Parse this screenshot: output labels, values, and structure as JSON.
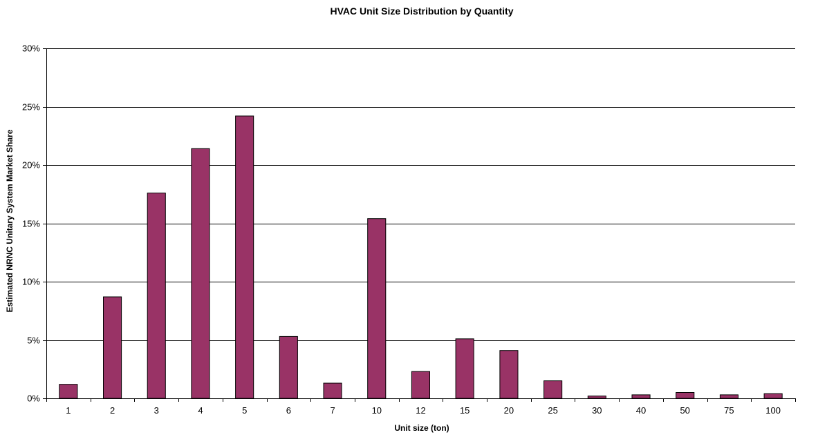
{
  "chart_data": {
    "type": "bar",
    "title": "HVAC Unit Size Distribution by Quantity",
    "xlabel": "Unit size (ton)",
    "ylabel": "Estimated NRNC Unitary System Market Share",
    "categories": [
      "1",
      "2",
      "3",
      "4",
      "5",
      "6",
      "7",
      "10",
      "12",
      "15",
      "20",
      "25",
      "30",
      "40",
      "50",
      "75",
      "100"
    ],
    "values": [
      1.2,
      8.7,
      17.6,
      21.4,
      24.2,
      5.3,
      1.3,
      15.4,
      2.3,
      5.1,
      4.1,
      1.5,
      0.2,
      0.3,
      0.5,
      0.3,
      0.4
    ],
    "ylim": [
      0,
      30
    ],
    "yticks": [
      0,
      5,
      10,
      15,
      20,
      25,
      30
    ],
    "ytick_suffix": "%",
    "grid": true,
    "legend": "none",
    "bar_color": "#993366"
  }
}
